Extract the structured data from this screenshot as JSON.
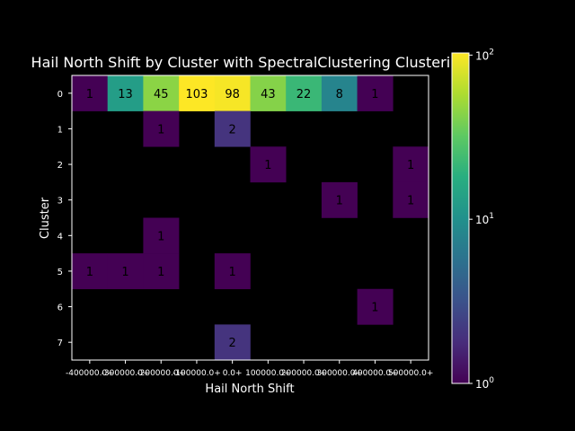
{
  "chart_data": {
    "type": "heatmap",
    "title": "Hail North Shift by Cluster with SpectralClustering Clustering",
    "xlabel": "Hail North Shift",
    "ylabel": "Cluster",
    "x_tick_labels": [
      "-400000.0+",
      "-300000.0+",
      "-200000.0+",
      "-100000.0+",
      "0.0+",
      "100000.0+",
      "200000.0+",
      "300000.0+",
      "400000.0+",
      "500000.0+"
    ],
    "y_tick_labels": [
      "0",
      "1",
      "2",
      "3",
      "4",
      "5",
      "6",
      "7"
    ],
    "matrix": [
      [
        1,
        13,
        45,
        103,
        98,
        43,
        22,
        8,
        1,
        null
      ],
      [
        null,
        null,
        1,
        null,
        2,
        null,
        null,
        null,
        null,
        null
      ],
      [
        null,
        null,
        null,
        null,
        null,
        1,
        null,
        null,
        null,
        1
      ],
      [
        null,
        null,
        null,
        null,
        null,
        null,
        null,
        1,
        null,
        1
      ],
      [
        null,
        null,
        1,
        null,
        null,
        null,
        null,
        null,
        null,
        null
      ],
      [
        1,
        1,
        1,
        null,
        1,
        null,
        null,
        null,
        null,
        null
      ],
      [
        null,
        null,
        null,
        null,
        null,
        null,
        null,
        null,
        1,
        null
      ],
      [
        null,
        null,
        null,
        null,
        2,
        null,
        null,
        null,
        null,
        null
      ]
    ],
    "colorbar": {
      "scale": "log",
      "min": 1,
      "max": 103,
      "ticks": [
        {
          "value": 100,
          "label_base": "10",
          "label_exp": "2"
        },
        {
          "value": 10,
          "label_base": "10",
          "label_exp": "1"
        },
        {
          "value": 1,
          "label_base": "10",
          "label_exp": "0"
        }
      ],
      "colormap": "viridis"
    },
    "background": "#000000"
  }
}
